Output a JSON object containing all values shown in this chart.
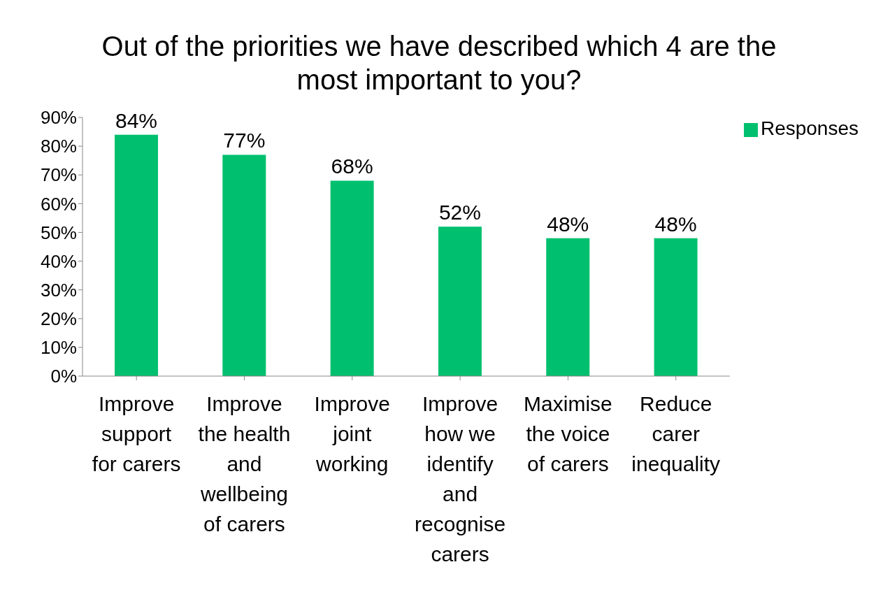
{
  "chart_data": {
    "type": "bar",
    "title": "Out of the priorities we have described which 4 are the most important to you?",
    "categories": [
      "Improve support for carers",
      "Improve the health and wellbeing of carers",
      "Improve joint working",
      "Improve how we identify and recognise carers",
      "Maximise the voice of carers",
      "Reduce carer inequality"
    ],
    "series": [
      {
        "name": "Responses",
        "color": "#00c06f",
        "values": [
          84,
          77,
          68,
          52,
          48,
          48
        ]
      }
    ],
    "value_labels": [
      "84%",
      "77%",
      "68%",
      "52%",
      "48%",
      "48%"
    ],
    "ylim": [
      0,
      90
    ],
    "yticks": [
      {
        "value": 0,
        "label": "0%"
      },
      {
        "value": 10,
        "label": "10%"
      },
      {
        "value": 20,
        "label": "20%"
      },
      {
        "value": 30,
        "label": "30%"
      },
      {
        "value": 40,
        "label": "40%"
      },
      {
        "value": 50,
        "label": "50%"
      },
      {
        "value": 60,
        "label": "60%"
      },
      {
        "value": 70,
        "label": "70%"
      },
      {
        "value": 80,
        "label": "80%"
      },
      {
        "value": 90,
        "label": "90%"
      }
    ],
    "grid": false,
    "legend": "top right"
  }
}
